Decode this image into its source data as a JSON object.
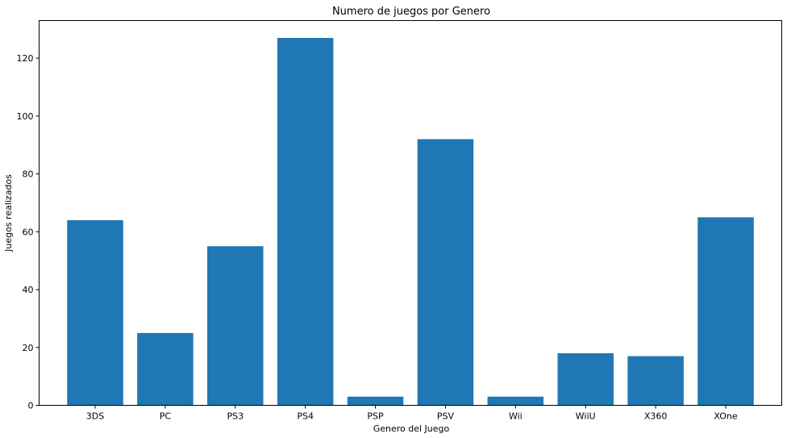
{
  "chart_data": {
    "type": "bar",
    "title": "Numero de juegos por Genero",
    "xlabel": "Genero del Juego",
    "ylabel": "Juegos realizados",
    "categories": [
      "3DS",
      "PC",
      "PS3",
      "PS4",
      "PSP",
      "PSV",
      "Wii",
      "WiiU",
      "X360",
      "XOne"
    ],
    "values": [
      64,
      25,
      55,
      127,
      3,
      92,
      3,
      18,
      17,
      65
    ],
    "ylim": [
      0,
      133
    ],
    "yticks": [
      0,
      20,
      40,
      60,
      80,
      100,
      120
    ],
    "grid": false,
    "legend": "none",
    "colors": {
      "bar": "#1f77b4",
      "axis": "#000000"
    }
  }
}
